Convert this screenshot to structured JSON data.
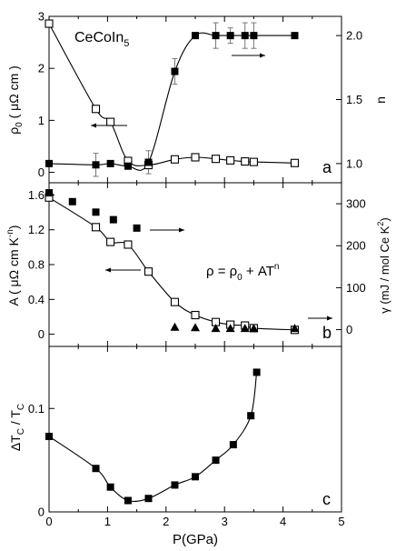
{
  "figure": {
    "compound_prefix": "CeCoIn",
    "compound_sub": "5",
    "rho_eq_main": "ρ = ρ",
    "rho_eq_sub": "0",
    "rho_eq_rest": " + AT",
    "rho_eq_sup": "n",
    "xlabel": "P(GPa)"
  },
  "chart_data": [
    {
      "panel": "a",
      "type": "scatter",
      "title": "",
      "x_ticks": [
        "0",
        "1",
        "2",
        "3",
        "4",
        "5"
      ],
      "xlim": [
        0,
        5
      ],
      "ylabel_left": {
        "prefix": "ρ",
        "sub": "0",
        "rest": " ( μΩ cm )"
      },
      "ylim_left": [
        -0.2,
        3.0
      ],
      "yticks_left": [
        "0",
        "1",
        "2",
        "3"
      ],
      "ylabel_right": "n",
      "ylim_right": [
        0.85,
        2.15
      ],
      "yticks_right": [
        "1.0",
        "1.5",
        "2.0"
      ],
      "series": [
        {
          "axis": "left",
          "marker": "open-square",
          "x": [
            0.0,
            0.8,
            1.05,
            1.35,
            1.7,
            2.15,
            2.5,
            2.85,
            3.1,
            3.35,
            3.5,
            4.2
          ],
          "y": [
            2.86,
            1.22,
            0.97,
            0.22,
            0.14,
            0.25,
            0.29,
            0.26,
            0.23,
            0.21,
            0.2,
            0.18
          ]
        },
        {
          "axis": "right",
          "marker": "filled-square",
          "x": [
            0.0,
            0.8,
            1.05,
            1.35,
            1.7,
            2.15,
            2.5,
            2.85,
            3.1,
            3.35,
            3.5,
            4.2
          ],
          "y": [
            1.0,
            0.99,
            1.0,
            0.98,
            1.01,
            1.72,
            2.0,
            2.0,
            2.0,
            2.0,
            2.0,
            2.0
          ],
          "error": [
            0,
            0.09,
            0,
            0,
            0.09,
            0.1,
            0,
            0.1,
            0.06,
            0.1,
            0.1,
            0
          ]
        }
      ]
    },
    {
      "panel": "b",
      "type": "scatter",
      "title": "",
      "x_ticks": [
        "0",
        "1",
        "2",
        "3",
        "4",
        "5"
      ],
      "xlim": [
        0,
        5
      ],
      "ylabel_left": {
        "prefix": "A ( μΩ cm K",
        "sup": "-n",
        "rest": ")"
      },
      "ylim_left": [
        -0.14,
        1.74
      ],
      "yticks_left": [
        "0",
        "0.4",
        "0.8",
        "1.2",
        "1.6"
      ],
      "ylabel_right": {
        "prefix": "γ (mJ / mol Ce K",
        "sup": "2",
        "rest": ")"
      },
      "ylim_right": [
        -40,
        350
      ],
      "yticks_right": [
        "0",
        "100",
        "200",
        "300"
      ],
      "series": [
        {
          "axis": "left",
          "marker": "open-square",
          "x": [
            0.0,
            0.8,
            1.05,
            1.35,
            1.7,
            2.15,
            2.5,
            2.85,
            3.1,
            3.35,
            3.5,
            4.2
          ],
          "y": [
            1.57,
            1.23,
            1.06,
            1.03,
            0.72,
            0.37,
            0.22,
            0.14,
            0.11,
            0.1,
            0.07,
            0.05
          ]
        },
        {
          "axis": "right",
          "marker": "filled-square",
          "x": [
            0.0,
            0.4,
            0.8,
            1.1,
            1.5
          ],
          "y": [
            326,
            305,
            280,
            262,
            242
          ]
        },
        {
          "axis": "right",
          "marker": "filled-triangle",
          "x": [
            2.15,
            2.5,
            2.85,
            3.1,
            3.35,
            3.5,
            4.2
          ],
          "y": [
            6,
            5,
            3,
            3,
            3,
            3,
            3
          ]
        }
      ]
    },
    {
      "panel": "c",
      "type": "scatter",
      "title": "",
      "x_ticks": [
        "0",
        "1",
        "2",
        "3",
        "4",
        "5"
      ],
      "xlim": [
        0,
        5
      ],
      "ylabel_left": {
        "prefix": "ΔT",
        "sub1": "C",
        "mid": " / T",
        "sub2": "C"
      },
      "ylim_left": [
        0,
        0.16
      ],
      "yticks_left": [
        "0",
        "0.1"
      ],
      "series": [
        {
          "axis": "left",
          "marker": "filled-square",
          "x": [
            0.0,
            0.8,
            1.05,
            1.35,
            1.7,
            2.15,
            2.5,
            2.85,
            3.15,
            3.45,
            3.55
          ],
          "y": [
            0.073,
            0.042,
            0.024,
            0.011,
            0.013,
            0.026,
            0.034,
            0.05,
            0.065,
            0.093,
            0.135
          ]
        }
      ]
    }
  ],
  "panel_labels": [
    "a",
    "b",
    "c"
  ]
}
